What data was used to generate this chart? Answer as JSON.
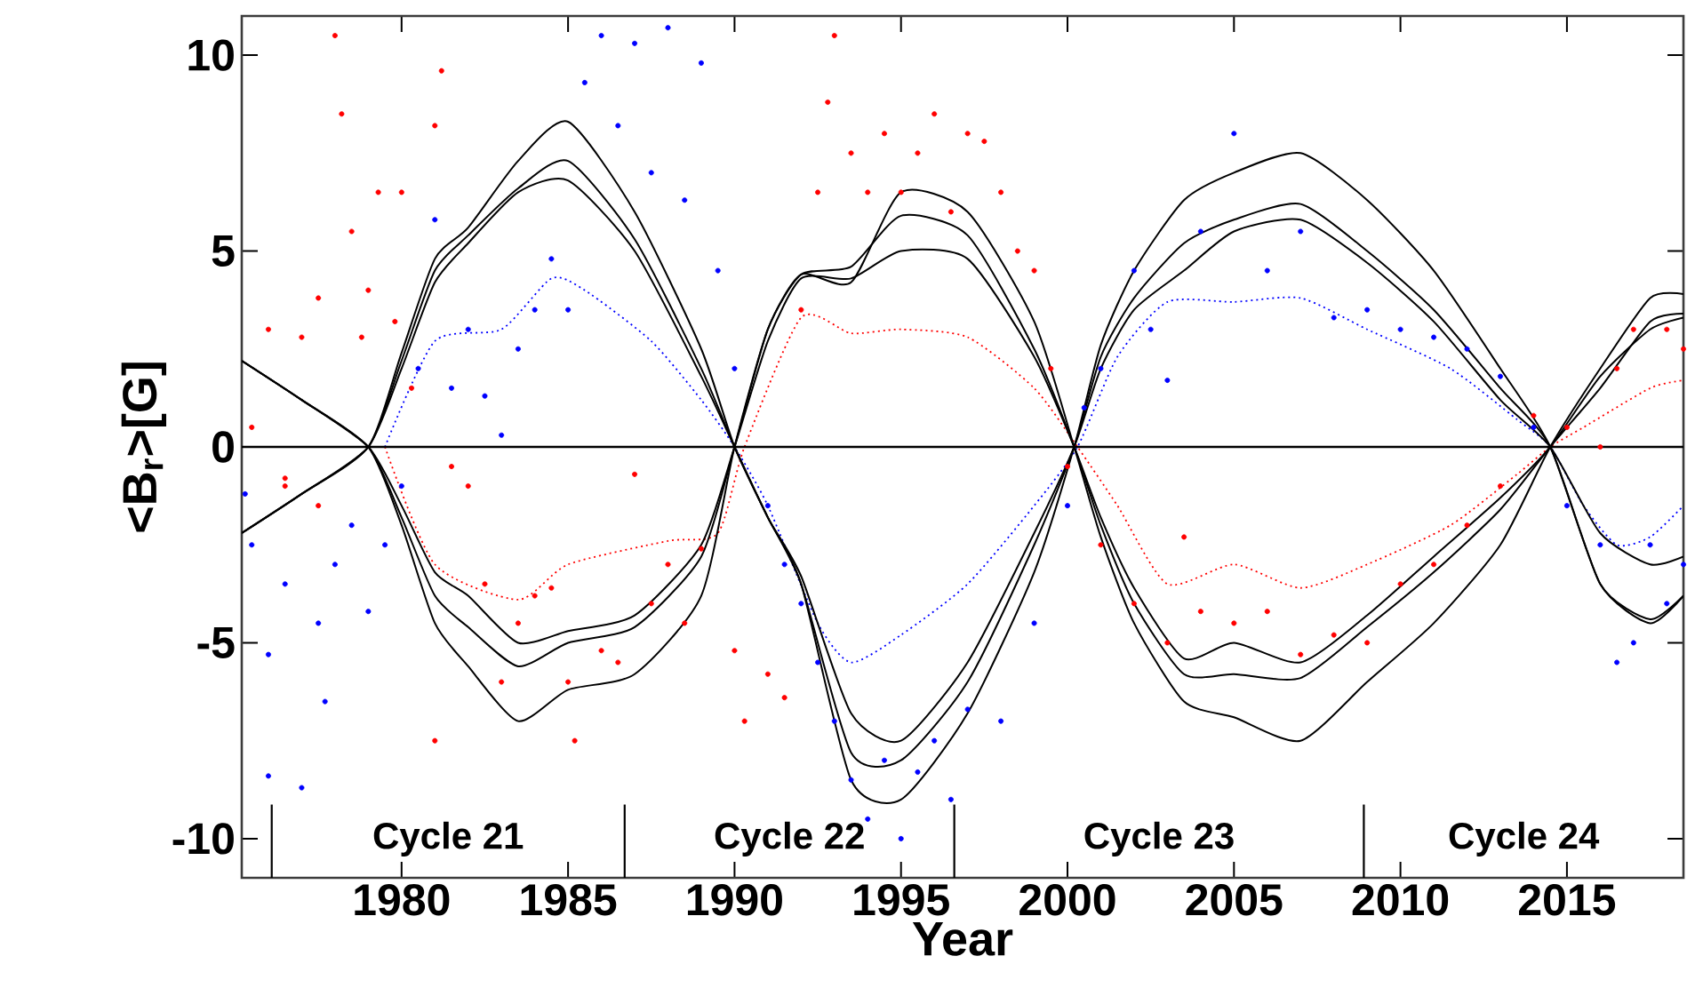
{
  "chart_data": {
    "type": "line",
    "xlabel": "Year",
    "ylabel": "<B$_{r}$>[G]",
    "xlim": [
      1975.2,
      2018.5
    ],
    "ylim": [
      -11,
      11
    ],
    "xticks": [
      1980,
      1985,
      1990,
      1995,
      2000,
      2005,
      2010,
      2015
    ],
    "yticks": [
      -10,
      -5,
      0,
      5,
      10
    ],
    "ref_lines": [
      {
        "axis": "y",
        "value": 0,
        "color": "#000000"
      },
      {
        "axis": "x",
        "value": 1976.1,
        "color": "#000000"
      },
      {
        "axis": "x",
        "value": 1986.7,
        "color": "#000000"
      },
      {
        "axis": "x",
        "value": 1996.6,
        "color": "#000000"
      },
      {
        "axis": "x",
        "value": 2008.9,
        "color": "#000000"
      }
    ],
    "annotations": [
      "Cycle 21",
      "Cycle 22",
      "Cycle 23",
      "Cycle 24"
    ],
    "series": [
      {
        "type": "scatter",
        "marker": "circle",
        "color": "#ff0000",
        "x": [
          1975.5,
          1976,
          1976.5,
          1977,
          1977.5,
          1978,
          1978.2,
          1978.5,
          1978.8,
          1979,
          1979.3,
          1979.8,
          1980,
          1980.3,
          1981.2,
          1981,
          1981,
          1981.5,
          1982,
          1982.5,
          1983,
          1983.5,
          1984,
          1984.5,
          1985,
          1985.2,
          1986,
          1986.5,
          1987,
          1987.5,
          1988,
          1988.5,
          1989,
          1990,
          1990.3,
          1991,
          1991.5,
          1992,
          1992.5,
          1992.8,
          1993,
          1993.5,
          1994,
          1994.5,
          1995,
          1995.5,
          1996,
          1996.5,
          1997,
          1997.5,
          1998,
          1998.5,
          1999,
          1999.5,
          2000,
          2001,
          2002,
          2003,
          2003.5,
          2004,
          2005,
          2006,
          2007,
          2008,
          2009,
          2010,
          2011,
          2012,
          2013,
          2014,
          2015,
          2016,
          2016.5,
          2017,
          2018,
          2018.5,
          1977.5,
          1976.5
        ],
        "values": [
          0.5,
          3.0,
          -0.8,
          2.8,
          3.8,
          10.5,
          8.5,
          5.5,
          2.8,
          4.0,
          6.5,
          3.2,
          6.5,
          1.5,
          9.6,
          8.2,
          -7.5,
          -0.5,
          -1.0,
          -3.5,
          -6.0,
          -4.5,
          -3.8,
          -3.6,
          -6.0,
          -7.5,
          -5.2,
          -5.5,
          -0.7,
          -4.0,
          -3.0,
          -4.5,
          -2.6,
          -5.2,
          -7.0,
          -5.8,
          -6.4,
          3.5,
          6.5,
          8.8,
          10.5,
          7.5,
          6.5,
          8.0,
          6.5,
          7.5,
          8.5,
          6.0,
          8.0,
          7.8,
          6.5,
          5.0,
          4.5,
          2.0,
          -0.5,
          -2.5,
          -4.0,
          -5.0,
          -2.3,
          -4.2,
          -4.5,
          -4.2,
          -5.3,
          -4.8,
          -5.0,
          -3.5,
          -3.0,
          -2.0,
          -1.0,
          0.8,
          0.5,
          0.0,
          2.0,
          3.0,
          3.0,
          2.5,
          -1.5,
          -1.0
        ]
      },
      {
        "type": "scatter",
        "marker": "circle",
        "color": "#0000ff",
        "x": [
          1975.3,
          1975.5,
          1976,
          1976,
          1976.5,
          1977,
          1977.5,
          1977.7,
          1978,
          1978.5,
          1979,
          1979.5,
          1980,
          1980.5,
          1981,
          1981.5,
          1982,
          1982.5,
          1983,
          1983.5,
          1984,
          1984.5,
          1985,
          1985.5,
          1986,
          1986.5,
          1987,
          1987.5,
          1988,
          1988.5,
          1989,
          1989.5,
          1990,
          1991,
          1991.5,
          1992,
          1992.5,
          1993,
          1993.5,
          1994,
          1994.5,
          1995,
          1995.5,
          1996,
          1996.5,
          1997,
          1998,
          1999,
          2000,
          2000.5,
          2001,
          2002,
          2002.5,
          2003,
          2004,
          2005,
          2006,
          2007,
          2008,
          2009,
          2010,
          2011,
          2012,
          2013,
          2014,
          2015,
          2016,
          2016.5,
          2017,
          2017.5,
          2018,
          2018.5
        ],
        "values": [
          -1.2,
          -2.5,
          -5.3,
          -8.4,
          -3.5,
          -8.7,
          -4.5,
          -6.5,
          -3.0,
          -2.0,
          -4.2,
          -2.5,
          -1.0,
          2.0,
          5.8,
          1.5,
          3.0,
          1.3,
          0.3,
          2.5,
          3.5,
          4.8,
          3.5,
          9.3,
          10.5,
          8.2,
          10.3,
          7.0,
          10.7,
          6.3,
          9.8,
          4.5,
          2.0,
          -1.5,
          -3.0,
          -4.0,
          -5.5,
          -7.0,
          -8.5,
          -9.5,
          -8.0,
          -10.0,
          -8.3,
          -7.5,
          -9.0,
          -6.7,
          -7.0,
          -4.5,
          -1.5,
          1.0,
          2.0,
          4.5,
          3.0,
          1.7,
          5.5,
          8.0,
          4.5,
          5.5,
          3.3,
          3.5,
          3.0,
          2.8,
          2.5,
          1.8,
          0.5,
          -1.5,
          -2.5,
          -5.5,
          -5.0,
          -2.5,
          -4.0,
          -3.0
        ]
      },
      {
        "marker": "none",
        "line_style": "dotted",
        "color": "#ff0000",
        "x": [
          1979.5,
          1981,
          1983.5,
          1985,
          1988,
          1989.5,
          1990.3,
          1992,
          1993.5,
          1995,
          1997,
          1999,
          2000.3,
          2001.5,
          2003,
          2005,
          2007,
          2009,
          2011.5,
          2013.5,
          2014.5,
          2015.5,
          2017.5,
          2018.5
        ],
        "values": [
          0,
          -3.0,
          -3.9,
          -3.0,
          -2.4,
          -2.2,
          0,
          3.3,
          2.9,
          3.0,
          2.8,
          1.5,
          0,
          -1.5,
          -3.5,
          -3.0,
          -3.6,
          -3.0,
          -2.0,
          -0.7,
          0,
          0.5,
          1.5,
          1.7
        ]
      },
      {
        "marker": "none",
        "line_style": "dotted",
        "color": "#0000ff",
        "x": [
          1979.5,
          1981,
          1983,
          1984.5,
          1985.5,
          1987.5,
          1989,
          1990,
          1991,
          1992.5,
          1993.5,
          1995,
          1997,
          1999,
          2000.3,
          2001.5,
          2003,
          2005,
          2007,
          2009,
          2011.5,
          2013.5,
          2014.5,
          2015.5,
          2016.5,
          2017.5,
          2018.5
        ],
        "values": [
          0,
          2.7,
          3.0,
          4.3,
          4.0,
          2.7,
          1.2,
          0,
          -1.5,
          -4.5,
          -5.5,
          -4.8,
          -3.5,
          -1.5,
          0,
          2.3,
          3.7,
          3.7,
          3.8,
          3.0,
          2.0,
          0.7,
          0,
          -1.5,
          -2.5,
          -2.3,
          -1.5
        ]
      },
      {
        "type": "line",
        "marker": "none",
        "line_style": "solid",
        "color": "#000000",
        "x": [
          1975.2,
          1977,
          1979,
          1980,
          1981,
          1982,
          1983.5,
          1985,
          1987,
          1989,
          1990,
          1991,
          1992,
          1993.5,
          1995,
          1997,
          1999,
          2000.2,
          2001,
          2002,
          2003.5,
          2005,
          2007,
          2009,
          2011,
          2013,
          2014.5,
          2016,
          2017.5,
          2018.5
        ],
        "values": [
          2.2,
          1.2,
          0,
          -1.8,
          -3.8,
          -4.6,
          -5.6,
          -5.0,
          -4.6,
          -2.8,
          0,
          3.0,
          4.4,
          4.6,
          5.9,
          5.4,
          2.5,
          0,
          -2.0,
          -4.0,
          -5.8,
          -5.8,
          -5.9,
          -4.6,
          -3.2,
          -1.6,
          0,
          1.5,
          3.2,
          3.4
        ]
      },
      {
        "type": "line",
        "marker": "none",
        "line_style": "solid",
        "color": "#000000",
        "x": [
          1975.2,
          1977,
          1979,
          1980,
          1981,
          1982,
          1983.5,
          1985,
          1987,
          1989,
          1990,
          1991,
          1992,
          1993.5,
          1995,
          1997,
          1999,
          2000.2,
          2001,
          2002,
          2003.5,
          2005,
          2007,
          2009,
          2011,
          2013,
          2014.5,
          2016,
          2017.5,
          2018.5
        ],
        "values": [
          2.2,
          1.2,
          0,
          -2.0,
          -4.5,
          -5.6,
          -7.0,
          -6.2,
          -5.8,
          -3.8,
          0,
          3.0,
          4.4,
          4.2,
          6.5,
          6.0,
          3.2,
          0,
          -2.3,
          -4.5,
          -6.5,
          -6.9,
          -7.5,
          -6.0,
          -4.5,
          -2.5,
          0,
          2.0,
          3.8,
          3.9
        ]
      },
      {
        "type": "line",
        "marker": "none",
        "line_style": "solid",
        "color": "#000000",
        "x": [
          1975.2,
          1977,
          1979,
          1980,
          1981,
          1982,
          1983.5,
          1985,
          1987,
          1989,
          1990,
          1991,
          1992,
          1993.5,
          1995,
          1997,
          1999,
          2000.2,
          2001,
          2002,
          2003.5,
          2005,
          2007,
          2009,
          2011,
          2013,
          2014.5,
          2016,
          2017.5,
          2018.5
        ],
        "values": [
          2.2,
          1.2,
          0,
          -1.5,
          -3.2,
          -3.8,
          -5.0,
          -4.7,
          -4.3,
          -2.5,
          0,
          2.7,
          4.3,
          4.3,
          5.0,
          4.8,
          2.3,
          0,
          -1.8,
          -3.6,
          -5.4,
          -5.0,
          -5.5,
          -4.3,
          -2.8,
          -1.3,
          0,
          1.8,
          3.0,
          3.3
        ]
      },
      {
        "type": "line",
        "marker": "none",
        "line_style": "solid",
        "color": "#000000",
        "x": [
          1975.2,
          1977,
          1979,
          1980,
          1981,
          1982,
          1983.5,
          1985,
          1987,
          1989,
          1990,
          1991,
          1992,
          1993.5,
          1995,
          1997,
          1999,
          2000.2,
          2001,
          2002,
          2003.5,
          2005,
          2007,
          2009,
          2011,
          2013,
          2014.5,
          2016,
          2017.5,
          2018.5
        ],
        "values": [
          -2.2,
          -1.2,
          0,
          2.2,
          4.5,
          5.4,
          6.6,
          7.3,
          5.3,
          2.0,
          0,
          -1.8,
          -3.5,
          -7.8,
          -8.0,
          -6.0,
          -2.5,
          0,
          2.3,
          3.8,
          5.2,
          5.8,
          6.2,
          5.0,
          3.5,
          1.5,
          0,
          -3.5,
          -4.4,
          -3.8
        ]
      },
      {
        "type": "line",
        "marker": "none",
        "line_style": "solid",
        "color": "#000000",
        "x": [
          1975.2,
          1977,
          1979,
          1980,
          1981,
          1982,
          1983.5,
          1985,
          1987,
          1989,
          1990,
          1991,
          1992,
          1993.5,
          1995,
          1997,
          1999,
          2000.2,
          2001,
          2002,
          2003.5,
          2005,
          2007,
          2009,
          2011,
          2013,
          2014.5,
          2016,
          2017.5,
          2018.5
        ],
        "values": [
          -2.2,
          -1.2,
          0,
          2.4,
          4.8,
          5.6,
          7.3,
          8.3,
          6.0,
          2.5,
          0,
          -1.8,
          -3.5,
          -8.5,
          -9.0,
          -6.8,
          -3.2,
          0,
          2.6,
          4.5,
          6.3,
          7.0,
          7.5,
          6.3,
          4.5,
          2.0,
          0,
          -3.5,
          -4.5,
          -3.8
        ]
      },
      {
        "type": "line",
        "marker": "none",
        "line_style": "solid",
        "color": "#000000",
        "x": [
          1975.2,
          1977,
          1979,
          1980,
          1981,
          1982,
          1983.5,
          1985,
          1987,
          1989,
          1990,
          1991,
          1992,
          1993.5,
          1995,
          1997,
          1999,
          2000.2,
          2001,
          2002,
          2003.5,
          2005,
          2007,
          2009,
          2011,
          2013,
          2014.5,
          2016,
          2017.5,
          2018.5
        ],
        "values": [
          -2.2,
          -1.2,
          0,
          2.0,
          4.2,
          5.2,
          6.5,
          6.8,
          5.0,
          1.8,
          0,
          -1.8,
          -3.3,
          -6.8,
          -7.5,
          -5.5,
          -2.2,
          0,
          2.0,
          3.5,
          4.5,
          5.5,
          5.8,
          4.7,
          3.2,
          1.2,
          0,
          -2.2,
          -3.0,
          -2.8
        ]
      }
    ]
  }
}
